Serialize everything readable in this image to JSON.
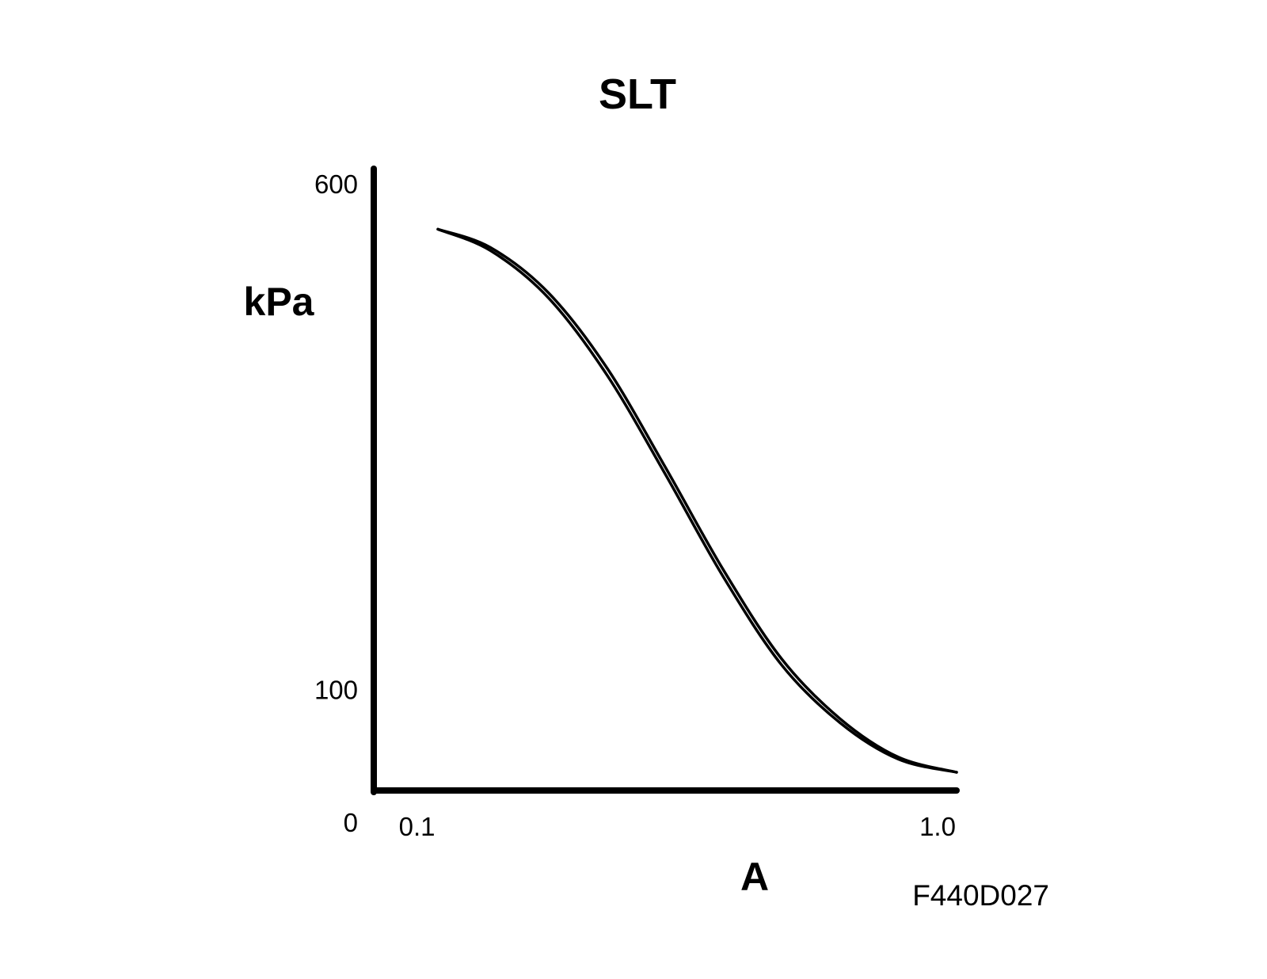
{
  "chart_data": {
    "type": "line",
    "title": "SLT",
    "xlabel": "A",
    "ylabel": "kPa",
    "figure_code": "F440D027",
    "x_ticks": [
      {
        "value": 0.1,
        "label": "0.1"
      },
      {
        "value": 1.0,
        "label": "1.0"
      }
    ],
    "y_ticks": [
      {
        "value": 0,
        "label": "0"
      },
      {
        "value": 100,
        "label": "100"
      },
      {
        "value": 600,
        "label": "600"
      }
    ],
    "xlim": [
      0.0,
      1.0
    ],
    "ylim": [
      0,
      600
    ],
    "grid": false,
    "legend": "none",
    "line_color": "#000000",
    "series": [
      {
        "values_x": [
          0.11,
          0.2,
          0.3,
          0.4,
          0.5,
          0.6,
          0.7,
          0.8,
          0.9,
          1.0
        ],
        "values_y": [
          555,
          537,
          492,
          418,
          320,
          218,
          130,
          71,
          33,
          18
        ]
      },
      {
        "values_x": [
          0.11,
          0.2,
          0.3,
          0.4,
          0.5,
          0.6,
          0.7,
          0.8,
          0.9,
          1.0
        ],
        "values_y": [
          555,
          534,
          487,
          411,
          313,
          211,
          124,
          67,
          31,
          18
        ]
      }
    ]
  }
}
